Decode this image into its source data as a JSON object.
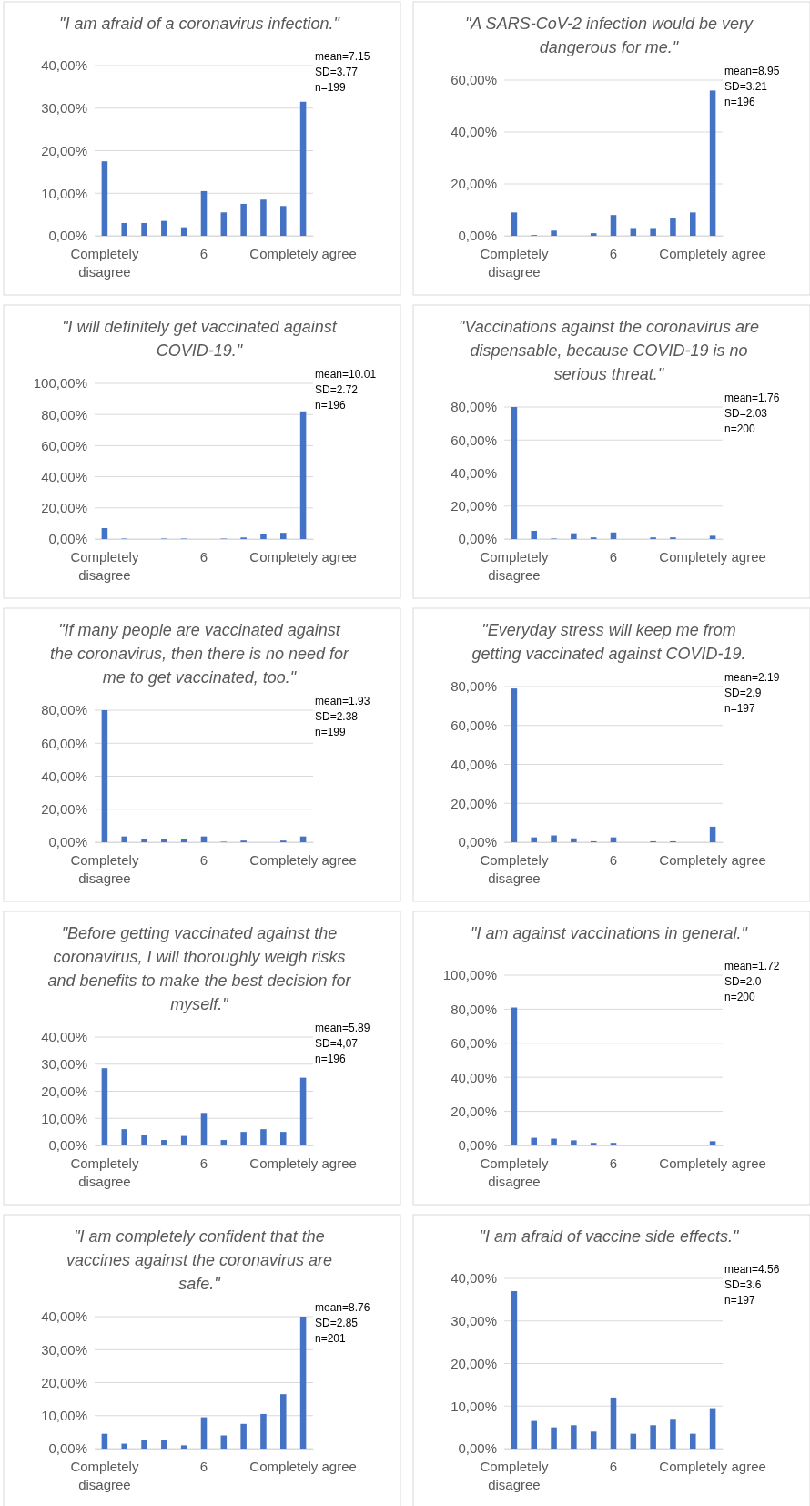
{
  "chart_data": [
    {
      "type": "bar",
      "title": "\"I am afraid of a coronavirus infection.\"",
      "categories": [
        "Completely disagree",
        null,
        null,
        null,
        null,
        "6",
        null,
        null,
        null,
        null,
        "Completely agree"
      ],
      "values": [
        17.5,
        3,
        3,
        3.5,
        2,
        10.5,
        5.5,
        7.5,
        8.5,
        7,
        31.5
      ],
      "color": "#4472c4",
      "ylim": [
        0,
        40
      ],
      "yticks": [
        {
          "value": 0,
          "label": "0,00%"
        },
        {
          "value": 10,
          "label": "10,00%"
        },
        {
          "value": 20,
          "label": "20,00%"
        },
        {
          "value": 30,
          "label": "30,00%"
        },
        {
          "value": 40,
          "label": "40,00%"
        }
      ],
      "grid": "y",
      "annotations": [
        "mean=7.15",
        "SD=3.77",
        "n=199"
      ]
    },
    {
      "type": "bar",
      "title": "\"A SARS-CoV-2 infection would be very dangerous for me.\"",
      "categories": [
        "Completely disagree",
        null,
        null,
        null,
        null,
        "6",
        null,
        null,
        null,
        null,
        "Completely agree"
      ],
      "values": [
        9,
        0.3,
        2,
        0,
        1,
        8,
        3,
        3,
        7,
        9,
        56
      ],
      "color": "#4472c4",
      "ylim": [
        0,
        60
      ],
      "yticks": [
        {
          "value": 0,
          "label": "0,00%"
        },
        {
          "value": 20,
          "label": "20,00%"
        },
        {
          "value": 40,
          "label": "40,00%"
        },
        {
          "value": 60,
          "label": "60,00%"
        }
      ],
      "grid": "y",
      "annotations": [
        "mean=8.95",
        "SD=3.21",
        "n=196"
      ]
    },
    {
      "type": "bar",
      "title": "\"I will definitely get vaccinated against COVID-19.\"",
      "categories": [
        "Completely disagree",
        null,
        null,
        null,
        null,
        "6",
        null,
        null,
        null,
        null,
        "Completely agree"
      ],
      "values": [
        7,
        0.3,
        0,
        0.3,
        0.3,
        0,
        0.3,
        1,
        3.5,
        4,
        82
      ],
      "color": "#4472c4",
      "ylim": [
        0,
        100
      ],
      "yticks": [
        {
          "value": 0,
          "label": "0,00%"
        },
        {
          "value": 20,
          "label": "20,00%"
        },
        {
          "value": 40,
          "label": "40,00%"
        },
        {
          "value": 60,
          "label": "60,00%"
        },
        {
          "value": 80,
          "label": "80,00%"
        },
        {
          "value": 100,
          "label": "100,00%"
        }
      ],
      "grid": "y",
      "annotations": [
        "mean=10.01",
        "SD=2.72",
        "n=196"
      ]
    },
    {
      "type": "bar",
      "title": "\"Vaccinations against the coronavirus are dispensable, because COVID-19 is no serious threat.\"",
      "categories": [
        "Completely disagree",
        null,
        null,
        null,
        null,
        "6",
        null,
        null,
        null,
        null,
        "Completely agree"
      ],
      "values": [
        80,
        5,
        0.3,
        3.5,
        1,
        4,
        0,
        1,
        1,
        0,
        2
      ],
      "color": "#4472c4",
      "ylim": [
        0,
        80
      ],
      "yticks": [
        {
          "value": 0,
          "label": "0,00%"
        },
        {
          "value": 20,
          "label": "20,00%"
        },
        {
          "value": 40,
          "label": "40,00%"
        },
        {
          "value": 60,
          "label": "60,00%"
        },
        {
          "value": 80,
          "label": "80,00%"
        }
      ],
      "grid": "y",
      "annotations": [
        "mean=1.76",
        "SD=2.03",
        "n=200"
      ]
    },
    {
      "type": "bar",
      "title": "\"If many people are vaccinated against the coronavirus, then there is no need for me to get vaccinated, too.\"",
      "categories": [
        "Completely disagree",
        null,
        null,
        null,
        null,
        "6",
        null,
        null,
        null,
        null,
        "Completely agree"
      ],
      "values": [
        80,
        3.5,
        2,
        2,
        2,
        3.5,
        0.3,
        1,
        0,
        1,
        3.5
      ],
      "color": "#4472c4",
      "ylim": [
        0,
        80
      ],
      "yticks": [
        {
          "value": 0,
          "label": "0,00%"
        },
        {
          "value": 20,
          "label": "20,00%"
        },
        {
          "value": 40,
          "label": "40,00%"
        },
        {
          "value": 60,
          "label": "60,00%"
        },
        {
          "value": 80,
          "label": "80,00%"
        }
      ],
      "grid": "y",
      "annotations": [
        "mean=1.93",
        "SD=2.38",
        "n=199"
      ]
    },
    {
      "type": "bar",
      "title": "\"Everyday stress will keep me from getting vaccinated against COVID-19.",
      "categories": [
        "Completely disagree",
        null,
        null,
        null,
        null,
        "6",
        null,
        null,
        null,
        null,
        "Completely agree"
      ],
      "values": [
        79,
        2.5,
        3.5,
        2,
        0.5,
        2.5,
        0,
        0.5,
        0.5,
        0,
        8
      ],
      "color": "#4472c4",
      "ylim": [
        0,
        80
      ],
      "yticks": [
        {
          "value": 0,
          "label": "0,00%"
        },
        {
          "value": 20,
          "label": "20,00%"
        },
        {
          "value": 40,
          "label": "40,00%"
        },
        {
          "value": 60,
          "label": "60,00%"
        },
        {
          "value": 80,
          "label": "80,00%"
        }
      ],
      "grid": "y",
      "annotations": [
        "mean=2.19",
        "SD=2.9",
        "n=197"
      ]
    },
    {
      "type": "bar",
      "title": "\"Before getting vaccinated against the coronavirus, I will thoroughly weigh risks and benefits to make the best decision for myself.\"",
      "categories": [
        "Completely disagree",
        null,
        null,
        null,
        null,
        "6",
        null,
        null,
        null,
        null,
        "Completely agree"
      ],
      "values": [
        28.5,
        6,
        4,
        2,
        3.5,
        12,
        2,
        5,
        6,
        5,
        25
      ],
      "color": "#4472c4",
      "ylim": [
        0,
        40
      ],
      "yticks": [
        {
          "value": 0,
          "label": "0,00%"
        },
        {
          "value": 10,
          "label": "10,00%"
        },
        {
          "value": 20,
          "label": "20,00%"
        },
        {
          "value": 30,
          "label": "30,00%"
        },
        {
          "value": 40,
          "label": "40,00%"
        }
      ],
      "grid": "y",
      "annotations": [
        "mean=5.89",
        "SD=4,07",
        "n=196"
      ]
    },
    {
      "type": "bar",
      "title": "\"I am against vaccinations in general.\"",
      "categories": [
        "Completely disagree",
        null,
        null,
        null,
        null,
        "6",
        null,
        null,
        null,
        null,
        "Completely agree"
      ],
      "values": [
        81,
        4.5,
        4,
        3,
        1.5,
        1.5,
        0.3,
        0,
        0.3,
        0.3,
        2.5
      ],
      "color": "#4472c4",
      "ylim": [
        0,
        100
      ],
      "yticks": [
        {
          "value": 0,
          "label": "0,00%"
        },
        {
          "value": 20,
          "label": "20,00%"
        },
        {
          "value": 40,
          "label": "40,00%"
        },
        {
          "value": 60,
          "label": "60,00%"
        },
        {
          "value": 80,
          "label": "80,00%"
        },
        {
          "value": 100,
          "label": "100,00%"
        }
      ],
      "grid": "y",
      "annotations": [
        "mean=1.72",
        "SD=2.0",
        "n=200"
      ]
    },
    {
      "type": "bar",
      "title": "\"I am completely confident that the vaccines against the coronavirus are safe.\"",
      "categories": [
        "Completely disagree",
        null,
        null,
        null,
        null,
        "6",
        null,
        null,
        null,
        null,
        "Completely agree"
      ],
      "values": [
        4.5,
        1.5,
        2.5,
        2.5,
        1,
        9.5,
        4,
        7.5,
        10.5,
        16.5,
        40
      ],
      "color": "#4472c4",
      "ylim": [
        0,
        40
      ],
      "yticks": [
        {
          "value": 0,
          "label": "0,00%"
        },
        {
          "value": 10,
          "label": "10,00%"
        },
        {
          "value": 20,
          "label": "20,00%"
        },
        {
          "value": 30,
          "label": "30,00%"
        },
        {
          "value": 40,
          "label": "40,00%"
        }
      ],
      "grid": "y",
      "annotations": [
        "mean=8.76",
        "SD=2.85",
        "n=201"
      ]
    },
    {
      "type": "bar",
      "title": "\"I am afraid of vaccine side effects.\"",
      "categories": [
        "Completely disagree",
        null,
        null,
        null,
        null,
        "6",
        null,
        null,
        null,
        null,
        "Completely agree"
      ],
      "values": [
        37,
        6.5,
        5,
        5.5,
        4,
        12,
        3.5,
        5.5,
        7,
        3.5,
        9.5
      ],
      "color": "#4472c4",
      "ylim": [
        0,
        40
      ],
      "yticks": [
        {
          "value": 0,
          "label": "0,00%"
        },
        {
          "value": 10,
          "label": "10,00%"
        },
        {
          "value": 20,
          "label": "20,00%"
        },
        {
          "value": 30,
          "label": "30,00%"
        },
        {
          "value": 40,
          "label": "40,00%"
        }
      ],
      "grid": "y",
      "annotations": [
        "mean=4.56",
        "SD=3.6",
        "n=197"
      ]
    }
  ]
}
